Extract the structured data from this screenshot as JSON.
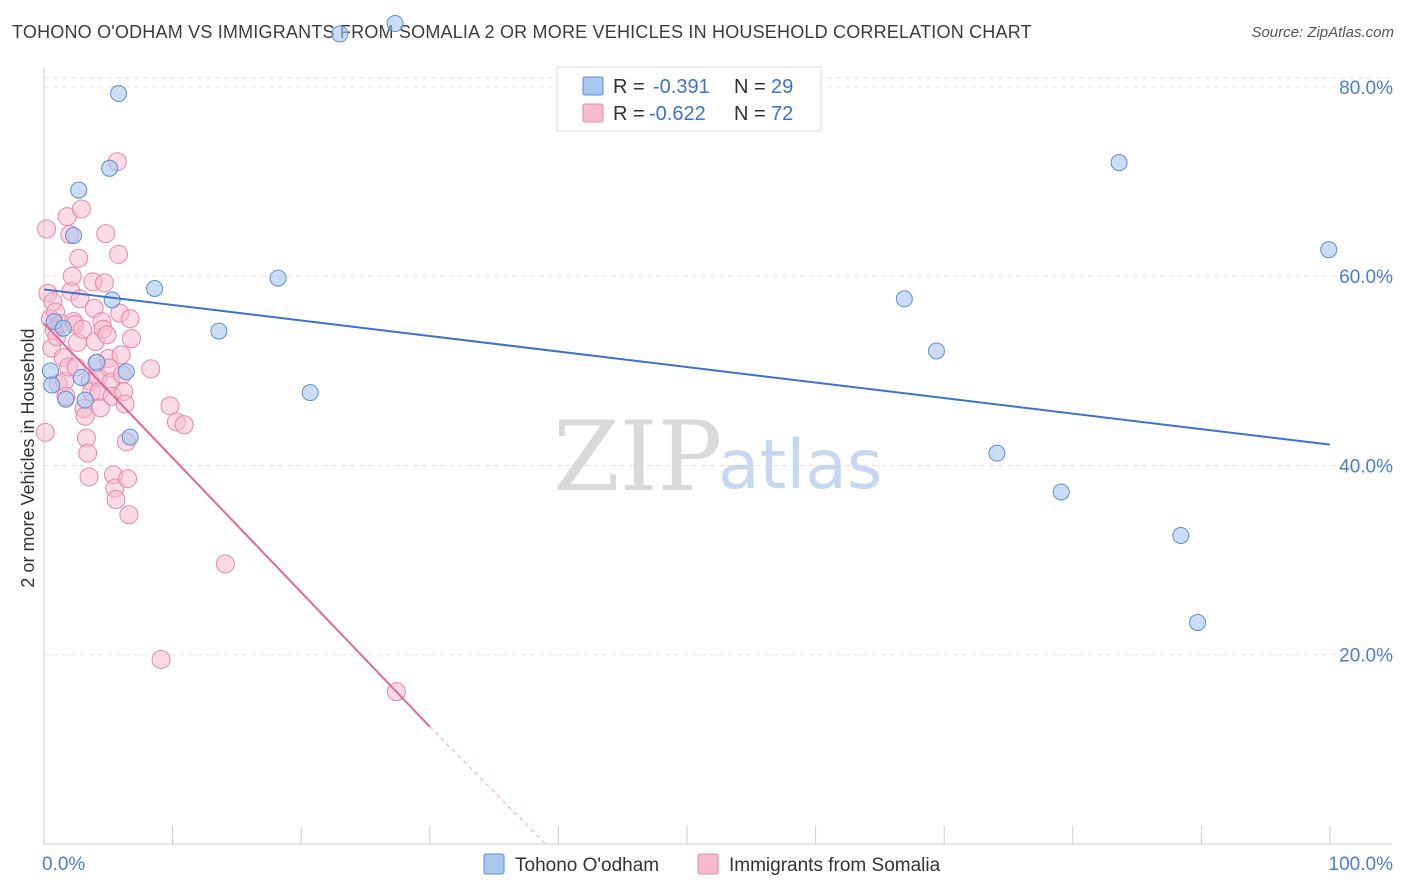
{
  "title": "TOHONO O'ODHAM VS IMMIGRANTS FROM SOMALIA 2 OR MORE VEHICLES IN HOUSEHOLD CORRELATION CHART",
  "source": "Source: ZipAtlas.com",
  "watermark": {
    "zip": "ZIP",
    "atlas": "atlas"
  },
  "colors": {
    "blue_fill": "#a9c6ee",
    "blue_stroke": "#5b8fd6",
    "blue_line": "#3b73cc",
    "pink_fill": "#f6bccd",
    "pink_stroke": "#e888a8",
    "pink_line": "#e06a96",
    "axis_text": "#4a7fd0",
    "grid": "#e3e3e3"
  },
  "legend": {
    "series1": {
      "r_label": "R =",
      "r_value": "-0.391",
      "n_label": "N =",
      "n_value": "29"
    },
    "series2": {
      "r_label": "R =",
      "r_value": "-0.622",
      "n_label": "N =",
      "n_value": "72"
    }
  },
  "chart_data": {
    "type": "scatter",
    "title": "TOHONO O'ODHAM VS IMMIGRANTS FROM SOMALIA 2 OR MORE VEHICLES IN HOUSEHOLD CORRELATION CHART",
    "xlabel": "",
    "ylabel": "2 or more Vehicles in Household",
    "xlim": [
      0,
      100
    ],
    "ylim": [
      0,
      82
    ],
    "x_ticks": [
      {
        "value": 0,
        "label": "0.0%"
      },
      {
        "value": 100,
        "label": "100.0%"
      }
    ],
    "x_minor_ticks": [
      0,
      10,
      20,
      30,
      40,
      50,
      60,
      70,
      80,
      90,
      100
    ],
    "y_ticks": [
      {
        "value": 20,
        "label": "20.0%"
      },
      {
        "value": 40,
        "label": "40.0%"
      },
      {
        "value": 60,
        "label": "60.0%"
      },
      {
        "value": 80,
        "label": "80.0%"
      }
    ],
    "series": [
      {
        "name": "Tohono O'odham",
        "color": "blue",
        "points": [
          [
            0.5,
            50.0
          ],
          [
            0.6,
            48.5
          ],
          [
            0.8,
            55.2
          ],
          [
            1.5,
            54.5
          ],
          [
            1.7,
            47.0
          ],
          [
            2.3,
            64.3
          ],
          [
            2.7,
            69.1
          ],
          [
            2.9,
            49.3
          ],
          [
            3.2,
            46.9
          ],
          [
            4.1,
            50.9
          ],
          [
            5.1,
            71.4
          ],
          [
            5.3,
            57.5
          ],
          [
            5.8,
            79.3
          ],
          [
            6.4,
            49.9
          ],
          [
            6.7,
            43.0
          ],
          [
            8.6,
            58.7
          ],
          [
            13.6,
            54.2
          ],
          [
            18.2,
            59.8
          ],
          [
            20.7,
            47.7
          ],
          [
            23.0,
            85.6
          ],
          [
            27.3,
            86.7
          ],
          [
            66.9,
            57.6
          ],
          [
            69.4,
            52.1
          ],
          [
            74.1,
            41.3
          ],
          [
            79.1,
            37.2
          ],
          [
            83.6,
            72.0
          ],
          [
            88.4,
            32.6
          ],
          [
            89.7,
            23.4
          ],
          [
            99.9,
            62.8
          ]
        ],
        "trend": {
          "x1": 0,
          "y1": 58.6,
          "x2": 100,
          "y2": 42.2
        }
      },
      {
        "name": "Immigrants from Somalia",
        "color": "pink",
        "points": [
          [
            0.1,
            43.5
          ],
          [
            0.3,
            58.2
          ],
          [
            0.5,
            55.5
          ],
          [
            0.6,
            52.4
          ],
          [
            0.7,
            57.3
          ],
          [
            0.8,
            54.3
          ],
          [
            0.9,
            56.2
          ],
          [
            1.0,
            53.6
          ],
          [
            1.1,
            48.6
          ],
          [
            1.3,
            55.0
          ],
          [
            1.5,
            51.4
          ],
          [
            1.6,
            48.9
          ],
          [
            1.7,
            47.3
          ],
          [
            1.8,
            66.3
          ],
          [
            1.9,
            50.4
          ],
          [
            2.0,
            64.4
          ],
          [
            2.1,
            58.4
          ],
          [
            2.2,
            60.0
          ],
          [
            2.3,
            55.2
          ],
          [
            2.4,
            54.9
          ],
          [
            2.5,
            50.4
          ],
          [
            2.6,
            53.0
          ],
          [
            2.7,
            61.9
          ],
          [
            2.8,
            57.6
          ],
          [
            2.9,
            67.1
          ],
          [
            3.0,
            54.4
          ],
          [
            3.1,
            46.0
          ],
          [
            3.2,
            45.2
          ],
          [
            3.3,
            42.9
          ],
          [
            3.4,
            41.3
          ],
          [
            3.5,
            38.8
          ],
          [
            3.6,
            48.9
          ],
          [
            3.7,
            47.8
          ],
          [
            3.8,
            59.4
          ],
          [
            3.9,
            56.6
          ],
          [
            4.0,
            53.1
          ],
          [
            4.1,
            50.8
          ],
          [
            4.2,
            49.3
          ],
          [
            4.3,
            47.8
          ],
          [
            4.4,
            46.1
          ],
          [
            4.5,
            55.2
          ],
          [
            4.6,
            54.4
          ],
          [
            4.7,
            59.3
          ],
          [
            4.8,
            64.5
          ],
          [
            4.9,
            53.8
          ],
          [
            5.0,
            51.3
          ],
          [
            5.1,
            50.3
          ],
          [
            5.2,
            48.8
          ],
          [
            5.3,
            47.3
          ],
          [
            5.4,
            39.0
          ],
          [
            5.5,
            37.6
          ],
          [
            5.6,
            36.4
          ],
          [
            5.7,
            72.1
          ],
          [
            5.8,
            62.3
          ],
          [
            5.9,
            56.1
          ],
          [
            6.0,
            51.7
          ],
          [
            6.1,
            49.6
          ],
          [
            6.2,
            47.8
          ],
          [
            6.3,
            46.5
          ],
          [
            6.4,
            42.5
          ],
          [
            6.5,
            38.6
          ],
          [
            6.6,
            34.8
          ],
          [
            6.7,
            55.5
          ],
          [
            6.8,
            53.4
          ],
          [
            8.3,
            50.2
          ],
          [
            9.1,
            19.5
          ],
          [
            9.8,
            46.3
          ],
          [
            10.3,
            44.6
          ],
          [
            10.9,
            44.3
          ],
          [
            14.1,
            29.6
          ],
          [
            27.4,
            16.1
          ],
          [
            0.2,
            65.0
          ]
        ],
        "trend": {
          "x1": 0,
          "y1": 55.0,
          "x2": 30,
          "y2": 12.4
        },
        "trend_dashed": {
          "x1": 30,
          "y1": 12.4,
          "x2": 39,
          "y2": 0
        }
      }
    ],
    "legend_entries": [
      "Tohono O'odham",
      "Immigrants from Somalia"
    ]
  }
}
